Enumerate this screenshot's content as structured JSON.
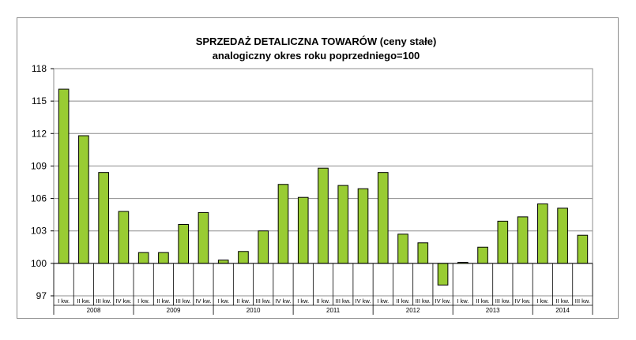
{
  "chart_data": {
    "type": "bar",
    "title": "SPRZEDAŻ DETALICZNA TOWARÓW (ceny stałe)",
    "subtitle": "analogiczny okres roku poprzedniego=100",
    "baseline": 100,
    "ylim": [
      97,
      118
    ],
    "yticks": [
      97,
      100,
      103,
      106,
      109,
      112,
      115,
      118
    ],
    "grid": true,
    "bar_color": "#99cc33",
    "categories": [
      "I kw.",
      "II kw.",
      "III kw.",
      "IV kw.",
      "I kw.",
      "II kw.",
      "III kw.",
      "IV kw.",
      "I kw.",
      "II kw.",
      "III kw.",
      "IV kw.",
      "I kw.",
      "II kw.",
      "III kw.",
      "IV kw.",
      "I kw.",
      "II kw.",
      "III kw.",
      "IV kw.",
      "I kw.",
      "II kw.",
      "III kw.",
      "IV kw.",
      "I kw.",
      "II kw.",
      "III kw."
    ],
    "years": [
      {
        "label": "2008",
        "count": 4
      },
      {
        "label": "2009",
        "count": 4
      },
      {
        "label": "2010",
        "count": 4
      },
      {
        "label": "2011",
        "count": 4
      },
      {
        "label": "2012",
        "count": 4
      },
      {
        "label": "2013",
        "count": 4
      },
      {
        "label": "2014",
        "count": 3
      }
    ],
    "values": [
      116.1,
      111.8,
      108.4,
      104.8,
      101.0,
      101.0,
      103.6,
      104.7,
      100.3,
      101.1,
      103.0,
      107.3,
      106.1,
      108.8,
      107.2,
      106.9,
      108.4,
      102.7,
      101.9,
      98.0,
      100.1,
      101.5,
      103.9,
      104.3,
      105.5,
      105.1,
      102.6
    ]
  }
}
